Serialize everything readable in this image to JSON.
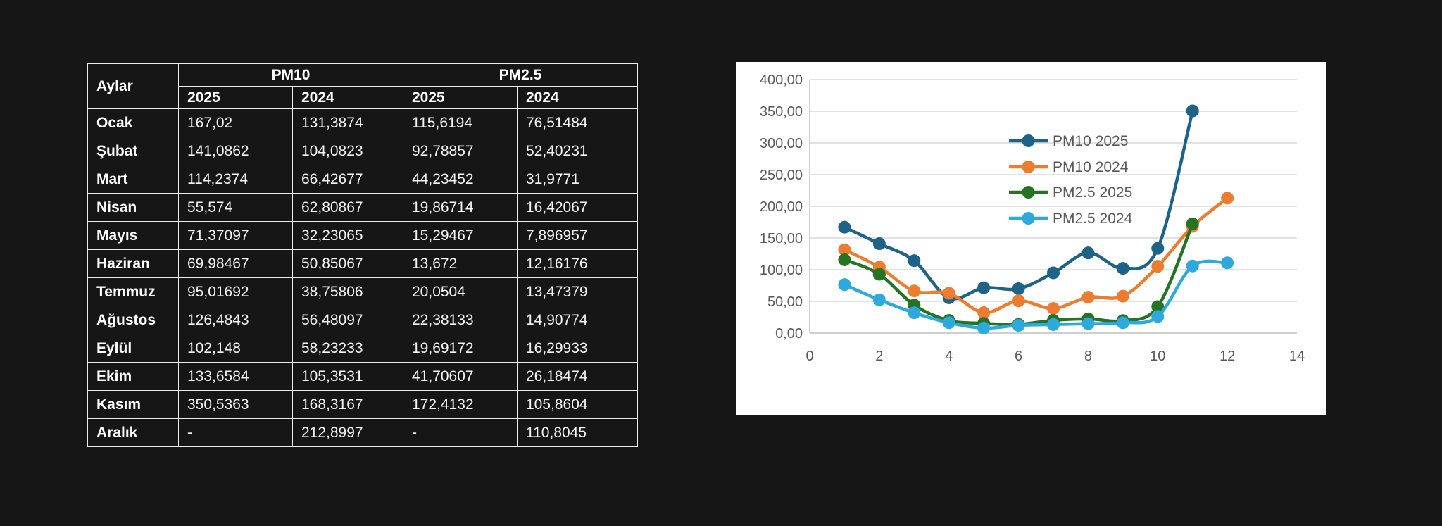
{
  "page": {
    "background_color": "#161616"
  },
  "table": {
    "header": {
      "months_label": "Aylar",
      "groups": [
        {
          "label": "PM10"
        },
        {
          "label": "PM2.5"
        }
      ],
      "years": [
        "2025",
        "2024",
        "2025",
        "2024"
      ]
    },
    "rows": [
      {
        "month": "Ocak",
        "values": [
          "167,02",
          "131,3874",
          "115,6194",
          "76,51484"
        ]
      },
      {
        "month": "Şubat",
        "values": [
          "141,0862",
          "104,0823",
          "92,78857",
          "52,40231"
        ]
      },
      {
        "month": "Mart",
        "values": [
          "114,2374",
          "66,42677",
          "44,23452",
          "31,9771"
        ]
      },
      {
        "month": "Nisan",
        "values": [
          "55,574",
          "62,80867",
          "19,86714",
          "16,42067"
        ]
      },
      {
        "month": "Mayıs",
        "values": [
          "71,37097",
          "32,23065",
          "15,29467",
          "7,896957"
        ]
      },
      {
        "month": "Haziran",
        "values": [
          "69,98467",
          "50,85067",
          "13,672",
          "12,16176"
        ]
      },
      {
        "month": "Temmuz",
        "values": [
          "95,01692",
          "38,75806",
          "20,0504",
          "13,47379"
        ]
      },
      {
        "month": "Ağustos",
        "values": [
          "126,4843",
          "56,48097",
          "22,38133",
          "14,90774"
        ]
      },
      {
        "month": "Eylül",
        "values": [
          "102,148",
          "58,23233",
          "19,69172",
          "16,29933"
        ]
      },
      {
        "month": "Ekim",
        "values": [
          "133,6584",
          "105,3531",
          "41,70607",
          "26,18474"
        ]
      },
      {
        "month": "Kasım",
        "values": [
          "350,5363",
          "168,3167",
          "172,4132",
          "105,8604"
        ]
      },
      {
        "month": "Aralık",
        "values": [
          "-",
          "212,8997",
          "-",
          "110,8045"
        ]
      }
    ]
  },
  "chart_data": {
    "type": "line",
    "title": "",
    "xlabel": "",
    "ylabel": "",
    "categories": [
      1,
      2,
      3,
      4,
      5,
      6,
      7,
      8,
      9,
      10,
      11,
      12
    ],
    "series": [
      {
        "name": "PM10 2025",
        "color": "#1F6287",
        "values": [
          167.02,
          141.0862,
          114.2374,
          55.574,
          71.37097,
          69.98467,
          95.01692,
          126.4843,
          102.148,
          133.6584,
          350.5363,
          null
        ]
      },
      {
        "name": "PM10 2024",
        "color": "#EC7C30",
        "values": [
          131.3874,
          104.0823,
          66.42677,
          62.80867,
          32.23065,
          50.85067,
          38.75806,
          56.48097,
          58.23233,
          105.3531,
          168.3167,
          212.8997
        ]
      },
      {
        "name": "PM2.5 2025",
        "color": "#267326",
        "values": [
          115.6194,
          92.78857,
          44.23452,
          19.86714,
          15.29467,
          13.672,
          20.0504,
          22.38133,
          19.69172,
          41.70607,
          172.4132,
          null
        ]
      },
      {
        "name": "PM2.5 2024",
        "color": "#2EA9DC",
        "values": [
          76.51484,
          52.40231,
          31.9771,
          16.42067,
          7.896957,
          12.16176,
          13.47379,
          14.90774,
          16.29933,
          26.18474,
          105.8604,
          110.8045
        ]
      }
    ],
    "xlim": [
      0,
      14
    ],
    "ylim": [
      0,
      400
    ],
    "x_ticks": [
      "0",
      "2",
      "4",
      "6",
      "8",
      "10",
      "12",
      "14"
    ],
    "y_ticks": [
      "400,00",
      "350,00",
      "300,00",
      "250,00",
      "200,00",
      "150,00",
      "100,00",
      "50,00",
      "0,00"
    ],
    "grid": "horizontal",
    "legend_position": "inside-right",
    "style": {
      "panel_bg": "#ffffff",
      "text_color": "#595959",
      "gridline_color": "#d9d9d9",
      "axis_color": "#bfbfbf",
      "marker_radius": 9,
      "line_width": 4.5
    }
  }
}
